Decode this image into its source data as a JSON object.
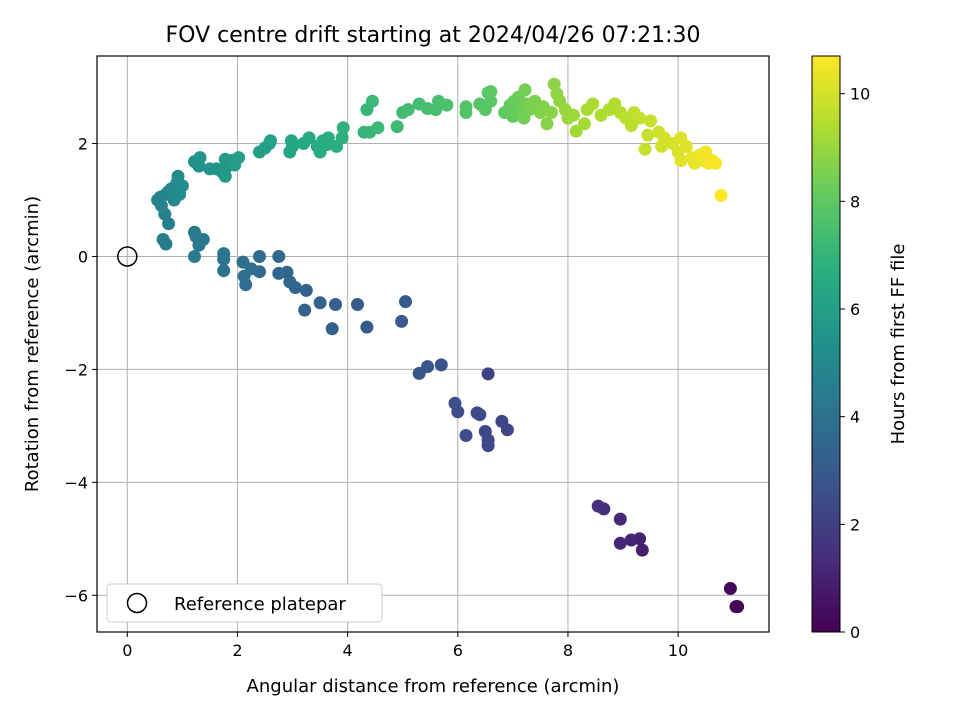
{
  "chart_data": {
    "type": "scatter",
    "title": "FOV centre drift starting at 2024/04/26 07:21:30",
    "xlabel": "Angular distance from reference (arcmin)",
    "ylabel": "Rotation from reference (arcmin)",
    "xlim": [
      -0.55,
      11.65
    ],
    "ylim": [
      -6.65,
      3.55
    ],
    "xticks": [
      0,
      2,
      4,
      6,
      8,
      10
    ],
    "yticks": [
      -6,
      -4,
      -2,
      0,
      2
    ],
    "grid": true,
    "legend": {
      "position": "lower-left",
      "entries": [
        "Reference platepar"
      ]
    },
    "reference_point": {
      "x": 0,
      "y": 0,
      "label": "Reference platepar"
    },
    "colorbar": {
      "label": "Hours from first FF file",
      "min": 0,
      "max": 10.7,
      "ticks": [
        0,
        2,
        4,
        6,
        8,
        10
      ],
      "colormap": "viridis"
    },
    "points_xy": [
      [
        11.08,
        -6.2,
        0.1
      ],
      [
        11.05,
        -6.2,
        0.12
      ],
      [
        10.95,
        -5.88,
        0.2
      ],
      [
        9.35,
        -5.2,
        0.9
      ],
      [
        9.3,
        -5.0,
        1.0
      ],
      [
        9.15,
        -5.02,
        1.1
      ],
      [
        8.95,
        -5.08,
        1.15
      ],
      [
        8.95,
        -4.65,
        1.2
      ],
      [
        8.65,
        -4.47,
        1.35
      ],
      [
        8.55,
        -4.42,
        1.4
      ],
      [
        6.55,
        -2.08,
        2.1
      ],
      [
        6.9,
        -3.07,
        2.15
      ],
      [
        6.8,
        -2.92,
        2.2
      ],
      [
        6.55,
        -3.25,
        2.25
      ],
      [
        6.5,
        -3.1,
        2.3
      ],
      [
        6.55,
        -3.35,
        2.35
      ],
      [
        6.35,
        -2.77,
        2.4
      ],
      [
        6.4,
        -2.8,
        2.45
      ],
      [
        6.15,
        -3.17,
        2.5
      ],
      [
        6.0,
        -2.75,
        2.55
      ],
      [
        5.95,
        -2.6,
        2.6
      ],
      [
        5.7,
        -1.92,
        2.75
      ],
      [
        5.45,
        -1.95,
        2.8
      ],
      [
        5.3,
        -2.07,
        2.85
      ],
      [
        5.05,
        -0.8,
        3.0
      ],
      [
        4.98,
        -1.15,
        3.05
      ],
      [
        4.35,
        -1.25,
        3.1
      ],
      [
        4.18,
        -0.85,
        3.15
      ],
      [
        3.78,
        -0.85,
        3.2
      ],
      [
        3.72,
        -1.28,
        3.25
      ],
      [
        3.5,
        -0.82,
        3.3
      ],
      [
        3.22,
        -0.95,
        3.35
      ],
      [
        3.25,
        -0.6,
        3.4
      ],
      [
        3.05,
        -0.55,
        3.45
      ],
      [
        2.95,
        -0.45,
        3.5
      ],
      [
        2.9,
        -0.28,
        3.55
      ],
      [
        2.75,
        0.0,
        3.6
      ],
      [
        2.75,
        -0.3,
        3.65
      ],
      [
        2.4,
        -0.27,
        3.7
      ],
      [
        2.4,
        0.0,
        3.75
      ],
      [
        2.25,
        -0.22,
        3.8
      ],
      [
        2.15,
        -0.5,
        3.85
      ],
      [
        2.12,
        -0.35,
        3.9
      ],
      [
        2.1,
        -0.1,
        3.95
      ],
      [
        1.75,
        -0.25,
        4.0
      ],
      [
        1.75,
        -0.05,
        4.05
      ],
      [
        1.75,
        0.05,
        4.1
      ],
      [
        1.38,
        0.3,
        4.2
      ],
      [
        1.3,
        0.2,
        4.25
      ],
      [
        1.25,
        0.35,
        4.3
      ],
      [
        1.22,
        0.43,
        4.35
      ],
      [
        1.22,
        0.0,
        4.4
      ],
      [
        0.7,
        0.22,
        4.5
      ],
      [
        0.65,
        0.3,
        4.55
      ],
      [
        0.75,
        0.58,
        4.6
      ],
      [
        0.68,
        0.75,
        4.65
      ],
      [
        0.62,
        0.9,
        4.7
      ],
      [
        0.55,
        1.0,
        4.75
      ],
      [
        0.6,
        1.05,
        4.8
      ],
      [
        0.7,
        1.1,
        4.85
      ],
      [
        0.75,
        1.15,
        4.9
      ],
      [
        0.8,
        1.2,
        4.95
      ],
      [
        0.85,
        1.0,
        5.0
      ],
      [
        0.9,
        1.3,
        5.05
      ],
      [
        0.92,
        1.42,
        5.1
      ],
      [
        0.95,
        1.1,
        5.15
      ],
      [
        1.0,
        1.25,
        5.2
      ],
      [
        1.22,
        1.68,
        5.35
      ],
      [
        1.3,
        1.6,
        5.4
      ],
      [
        1.32,
        1.75,
        5.45
      ],
      [
        1.5,
        1.55,
        5.5
      ],
      [
        1.62,
        1.55,
        5.55
      ],
      [
        1.72,
        1.5,
        5.6
      ],
      [
        1.8,
        1.58,
        5.65
      ],
      [
        1.78,
        1.72,
        5.7
      ],
      [
        1.78,
        1.42,
        5.75
      ],
      [
        1.9,
        1.7,
        5.8
      ],
      [
        1.95,
        1.62,
        5.85
      ],
      [
        2.02,
        1.75,
        5.9
      ],
      [
        2.4,
        1.85,
        6.0
      ],
      [
        2.5,
        1.92,
        6.05
      ],
      [
        2.58,
        2.0,
        6.1
      ],
      [
        2.6,
        2.05,
        6.15
      ],
      [
        2.95,
        1.85,
        6.25
      ],
      [
        3.0,
        1.95,
        6.3
      ],
      [
        2.98,
        2.05,
        6.35
      ],
      [
        3.2,
        2.0,
        6.4
      ],
      [
        3.3,
        2.1,
        6.45
      ],
      [
        3.45,
        1.95,
        6.5
      ],
      [
        3.5,
        1.85,
        6.55
      ],
      [
        3.55,
        2.05,
        6.6
      ],
      [
        3.62,
        1.98,
        6.65
      ],
      [
        3.65,
        2.1,
        6.7
      ],
      [
        3.8,
        1.95,
        6.75
      ],
      [
        3.9,
        2.1,
        6.8
      ],
      [
        3.92,
        2.28,
        6.85
      ],
      [
        4.3,
        2.2,
        7.0
      ],
      [
        4.4,
        2.2,
        7.05
      ],
      [
        4.35,
        2.6,
        7.1
      ],
      [
        4.45,
        2.75,
        7.15
      ],
      [
        4.55,
        2.28,
        7.2
      ],
      [
        4.9,
        2.3,
        7.25
      ],
      [
        5.0,
        2.55,
        7.3
      ],
      [
        5.1,
        2.6,
        7.35
      ],
      [
        5.3,
        2.7,
        7.4
      ],
      [
        5.45,
        2.62,
        7.45
      ],
      [
        5.6,
        2.6,
        7.5
      ],
      [
        5.65,
        2.75,
        7.55
      ],
      [
        5.8,
        2.68,
        7.6
      ],
      [
        6.15,
        2.55,
        7.7
      ],
      [
        6.15,
        2.65,
        7.75
      ],
      [
        6.4,
        2.7,
        7.8
      ],
      [
        6.5,
        2.6,
        7.85
      ],
      [
        6.55,
        2.9,
        7.9
      ],
      [
        6.6,
        2.75,
        7.95
      ],
      [
        6.6,
        2.92,
        8.0
      ],
      [
        6.85,
        2.55,
        8.05
      ],
      [
        6.95,
        2.68,
        8.1
      ],
      [
        7.0,
        2.48,
        8.15
      ],
      [
        7.02,
        2.75,
        8.2
      ],
      [
        7.1,
        2.82,
        8.25
      ],
      [
        7.15,
        2.6,
        8.3
      ],
      [
        7.2,
        2.45,
        8.35
      ],
      [
        7.22,
        2.95,
        8.4
      ],
      [
        7.25,
        2.7,
        8.45
      ],
      [
        7.3,
        2.6,
        8.5
      ],
      [
        7.4,
        2.75,
        8.55
      ],
      [
        7.55,
        2.65,
        8.6
      ],
      [
        7.5,
        2.55,
        8.65
      ],
      [
        7.62,
        2.35,
        8.7
      ],
      [
        7.7,
        2.55,
        8.75
      ],
      [
        7.75,
        3.05,
        8.8
      ],
      [
        7.8,
        2.88,
        8.85
      ],
      [
        7.85,
        2.75,
        8.9
      ],
      [
        7.95,
        2.6,
        9.0
      ],
      [
        8.0,
        2.45,
        9.05
      ],
      [
        8.1,
        2.5,
        9.1
      ],
      [
        8.15,
        2.22,
        9.15
      ],
      [
        8.3,
        2.35,
        9.2
      ],
      [
        8.35,
        2.6,
        9.25
      ],
      [
        8.45,
        2.7,
        9.3
      ],
      [
        8.6,
        2.5,
        9.35
      ],
      [
        8.75,
        2.6,
        9.4
      ],
      [
        8.85,
        2.7,
        9.45
      ],
      [
        8.95,
        2.55,
        9.5
      ],
      [
        9.05,
        2.45,
        9.55
      ],
      [
        9.15,
        2.32,
        9.6
      ],
      [
        9.2,
        2.55,
        9.65
      ],
      [
        9.3,
        2.45,
        9.7
      ],
      [
        9.45,
        2.15,
        9.75
      ],
      [
        9.4,
        1.9,
        9.8
      ],
      [
        9.5,
        2.4,
        9.85
      ],
      [
        9.65,
        2.2,
        9.9
      ],
      [
        9.7,
        1.95,
        9.95
      ],
      [
        9.75,
        2.1,
        10.0
      ],
      [
        9.9,
        2.0,
        10.05
      ],
      [
        10.0,
        1.85,
        10.1
      ],
      [
        10.05,
        2.1,
        10.15
      ],
      [
        10.15,
        1.95,
        10.2
      ],
      [
        10.05,
        1.7,
        10.25
      ],
      [
        10.25,
        1.75,
        10.3
      ],
      [
        10.3,
        1.65,
        10.35
      ],
      [
        10.4,
        1.8,
        10.4
      ],
      [
        10.45,
        1.7,
        10.45
      ],
      [
        10.5,
        1.85,
        10.5
      ],
      [
        10.55,
        1.65,
        10.55
      ],
      [
        10.62,
        1.7,
        10.6
      ],
      [
        10.68,
        1.65,
        10.62
      ],
      [
        10.78,
        1.08,
        10.7
      ]
    ]
  }
}
